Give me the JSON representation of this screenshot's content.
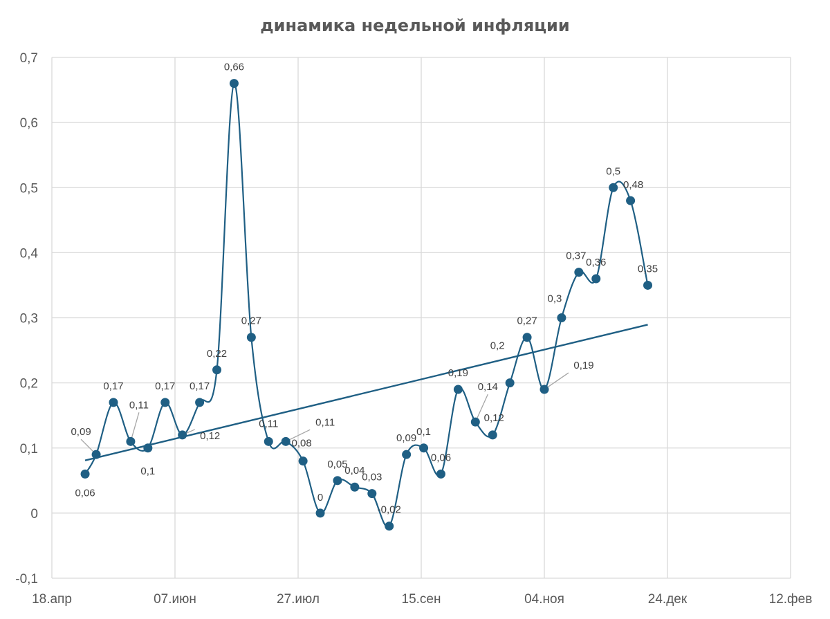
{
  "chart_data": {
    "type": "line",
    "title": "динамика недельной инфляции",
    "xlabel": "",
    "ylabel": "",
    "x_unit": "days since 18.апр",
    "xlim": [
      0,
      300
    ],
    "ylim": [
      -0.1,
      0.7
    ],
    "grid": true,
    "legend": "none",
    "x_ticks": [
      {
        "value": 0,
        "label": "18.апр"
      },
      {
        "value": 50,
        "label": "07.июн"
      },
      {
        "value": 100,
        "label": "27.июл"
      },
      {
        "value": 150,
        "label": "15.сен"
      },
      {
        "value": 200,
        "label": "04.ноя"
      },
      {
        "value": 250,
        "label": "24.дек"
      },
      {
        "value": 300,
        "label": "12.фев"
      }
    ],
    "y_ticks": [
      {
        "value": -0.1,
        "label": "-0,1"
      },
      {
        "value": 0,
        "label": "0"
      },
      {
        "value": 0.1,
        "label": "0,1"
      },
      {
        "value": 0.2,
        "label": "0,2"
      },
      {
        "value": 0.3,
        "label": "0,3"
      },
      {
        "value": 0.4,
        "label": "0,4"
      },
      {
        "value": 0.5,
        "label": "0,5"
      },
      {
        "value": 0.6,
        "label": "0,6"
      },
      {
        "value": 0.7,
        "label": "0,7"
      }
    ],
    "series": [
      {
        "name": "недельная инфляция",
        "color": "#1f5f84",
        "smooth": true,
        "x": [
          13.5,
          18,
          25,
          32,
          39,
          46,
          53,
          60,
          67,
          74,
          81,
          88,
          95,
          102,
          109,
          116,
          123,
          130,
          137,
          144,
          151,
          158,
          165,
          172,
          179,
          186,
          193,
          200,
          207,
          214,
          221,
          228,
          235,
          242
        ],
        "values": [
          0.06,
          0.09,
          0.17,
          0.11,
          0.1,
          0.17,
          0.12,
          0.17,
          0.22,
          0.66,
          0.27,
          0.11,
          0.11,
          0.08,
          0,
          0.05,
          0.04,
          0.03,
          -0.02,
          0.09,
          0.1,
          0.06,
          0.19,
          0.14,
          0.12,
          0.2,
          0.27,
          0.19,
          0.3,
          0.37,
          0.36,
          0.5,
          0.48,
          0.35
        ],
        "labels": [
          "0,06",
          "0,09",
          "0,17",
          "0,11",
          "0,1",
          "0,17",
          "0,12",
          "0,17",
          "0,22",
          "0,66",
          "0,27",
          "0,11",
          "0,11",
          "0,08",
          "0",
          "0,05",
          "0,04",
          "0,03",
          "-0,02",
          "0,09",
          "0,1",
          "0,06",
          "0,19",
          "0,14",
          "0,12",
          "0,2",
          "0,27",
          "0,19",
          "0,3",
          "0,37",
          "0,36",
          "0,5",
          "0,48",
          "0,35"
        ]
      }
    ],
    "trendline": {
      "type": "linear",
      "color": "#1f5f84"
    }
  }
}
